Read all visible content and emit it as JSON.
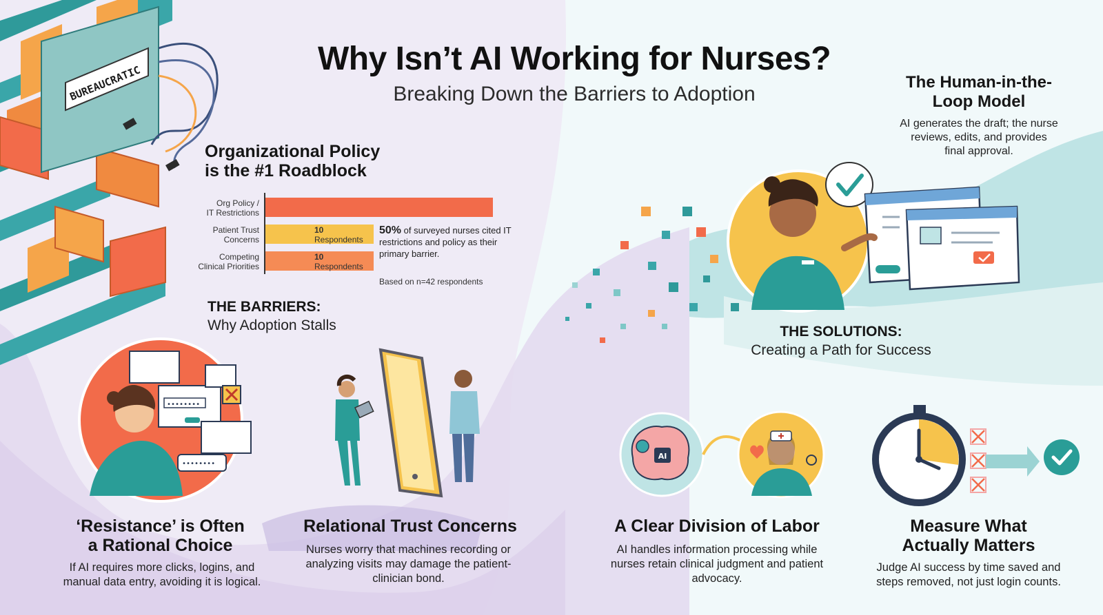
{
  "title": "Why Isn’t AI Working for Nurses?",
  "subtitle": "Breaking Down the Barriers to Adoption",
  "illustration": {
    "wall_sign": "BUREAUCRATIC",
    "password_mask_1": "••••••••",
    "password_mask_2": "••••••••",
    "brain_chip": "AI"
  },
  "policy": {
    "heading_line1": "Organizational Policy",
    "heading_line2": "is the #1 Roadblock",
    "chart_data": {
      "type": "bar",
      "categories": [
        "Org Policy / IT Restrictions",
        "Patient Trust Concerns",
        "Competing Clinical Priorities"
      ],
      "values": [
        21,
        10,
        10
      ],
      "colors": [
        "#f26b4a",
        "#f6c34c",
        "#f58b55"
      ]
    },
    "bars": [
      {
        "label_line1": "Org Policy /",
        "label_line2": "IT Restrictions",
        "count": "",
        "unit": ""
      },
      {
        "label_line1": "Patient Trust",
        "label_line2": "Concerns",
        "count": "10",
        "unit": "Respondents"
      },
      {
        "label_line1": "Competing",
        "label_line2": "Clinical Priorities",
        "count": "10",
        "unit": "Respondents"
      }
    ],
    "stat_pct": "50%",
    "stat_text": "of surveyed nurses cited IT restrictions and policy as their primary barrier.",
    "note": "Based on n=42 respondents"
  },
  "barriers": {
    "heading": "THE BARRIERS:",
    "sub": "Why Adoption Stalls"
  },
  "solutions": {
    "heading": "THE SOLUTIONS:",
    "sub": "Creating a Path for Success"
  },
  "hitl": {
    "heading_line1": "The Human-in-the-",
    "heading_line2": "Loop Model",
    "body": "AI generates the draft; the nurse reviews, edits, and provides final approval."
  },
  "cards": [
    {
      "heading_line1": "‘Resistance’ is Often",
      "heading_line2": "a Rational Choice",
      "body": "If AI requires more clicks, logins, and manual data entry, avoiding it is logical."
    },
    {
      "heading_line1": "Relational Trust Concerns",
      "heading_line2": "",
      "body": "Nurses worry that machines recording or analyzing visits may damage the patient-clinician bond."
    },
    {
      "heading_line1": "A Clear Division of Labor",
      "heading_line2": "",
      "body": "AI handles information processing while nurses retain clinical judgment and patient advocacy."
    },
    {
      "heading_line1": "Measure What",
      "heading_line2": "Actually Matters",
      "body": "Judge AI success by time saved and steps removed, not just login counts."
    }
  ],
  "colors": {
    "lavender": "#e6def1",
    "lavender_deep": "#d6c8ea",
    "mint": "#f1f9fa",
    "teal": "#3aa6a9",
    "orange": "#f26b4a",
    "yellow": "#f6c34c",
    "nurse_teal": "#2a9d97"
  }
}
